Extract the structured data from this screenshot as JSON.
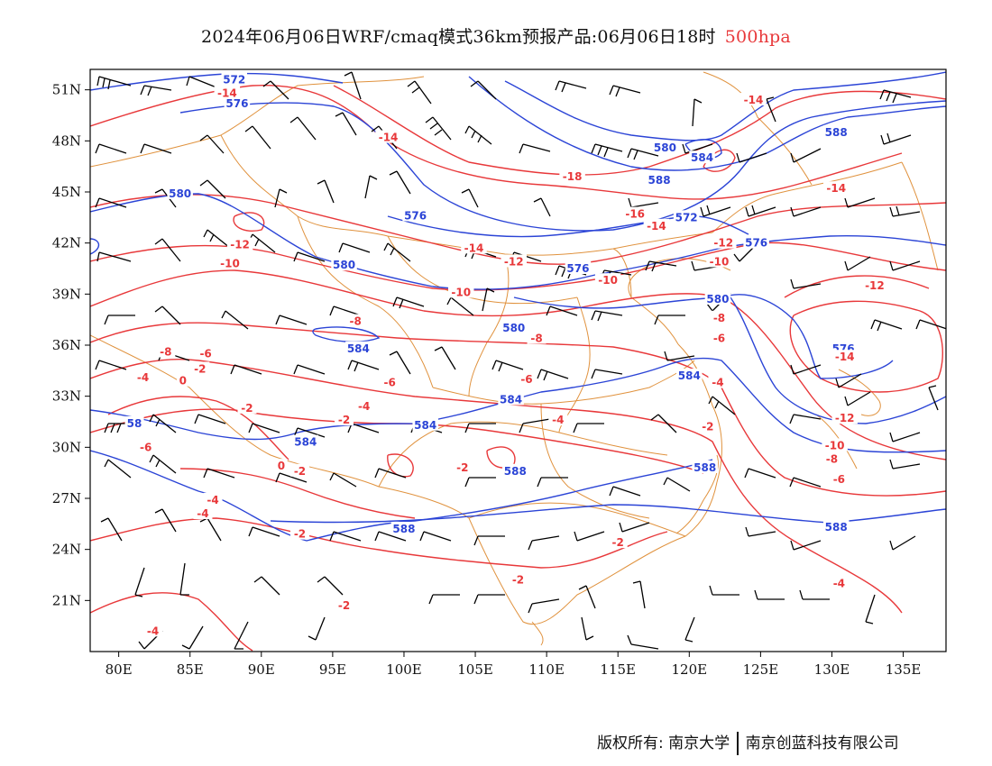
{
  "title": {
    "main": "2024年06月06日WRF/cmaq模式36km预报产品:06月06日18时",
    "level": "500hpa"
  },
  "map": {
    "lon_range": [
      78,
      138
    ],
    "lat_range": [
      18,
      52.2
    ],
    "lon_ticks": [
      {
        "value": 80,
        "label": "80E"
      },
      {
        "value": 85,
        "label": "85E"
      },
      {
        "value": 90,
        "label": "90E"
      },
      {
        "value": 95,
        "label": "95E"
      },
      {
        "value": 100,
        "label": "100E"
      },
      {
        "value": 105,
        "label": "105E"
      },
      {
        "value": 110,
        "label": "110E"
      },
      {
        "value": 115,
        "label": "115E"
      },
      {
        "value": 120,
        "label": "120E"
      },
      {
        "value": 125,
        "label": "125E"
      },
      {
        "value": 130,
        "label": "130E"
      },
      {
        "value": 135,
        "label": "135E"
      }
    ],
    "lat_ticks": [
      {
        "value": 51,
        "label": "51N"
      },
      {
        "value": 48,
        "label": "48N"
      },
      {
        "value": 45,
        "label": "45N"
      },
      {
        "value": 42,
        "label": "42N"
      },
      {
        "value": 39,
        "label": "39N"
      },
      {
        "value": 36,
        "label": "36N"
      },
      {
        "value": 33,
        "label": "33N"
      },
      {
        "value": 30,
        "label": "30N"
      },
      {
        "value": 27,
        "label": "27N"
      },
      {
        "value": 24,
        "label": "24N"
      },
      {
        "value": 21,
        "label": "21N"
      }
    ],
    "colors": {
      "height_contour": "#2b44d6",
      "temperature_contour": "#e8383a",
      "boundaries": "#e0923e",
      "wind_barbs": "#000000"
    },
    "height_labels": [
      {
        "text": "572",
        "lon": 88.1,
        "lat": 51.6
      },
      {
        "text": "576",
        "lon": 88.3,
        "lat": 50.2
      },
      {
        "text": "580",
        "lon": 84.3,
        "lat": 44.9
      },
      {
        "text": "576",
        "lon": 100.8,
        "lat": 43.6
      },
      {
        "text": "580",
        "lon": 95.8,
        "lat": 40.7
      },
      {
        "text": "584",
        "lon": 96.8,
        "lat": 35.8
      },
      {
        "text": "580",
        "lon": 107.7,
        "lat": 37.0
      },
      {
        "text": "576",
        "lon": 112.2,
        "lat": 40.5
      },
      {
        "text": "580",
        "lon": 118.3,
        "lat": 47.6
      },
      {
        "text": "584",
        "lon": 120.9,
        "lat": 47.0
      },
      {
        "text": "588",
        "lon": 130.3,
        "lat": 48.5
      },
      {
        "text": "588",
        "lon": 117.9,
        "lat": 45.7
      },
      {
        "text": "572",
        "lon": 119.8,
        "lat": 43.5
      },
      {
        "text": "576",
        "lon": 124.7,
        "lat": 42.0
      },
      {
        "text": "580",
        "lon": 122.0,
        "lat": 38.7
      },
      {
        "text": "576",
        "lon": 130.8,
        "lat": 35.8
      },
      {
        "text": "584",
        "lon": 120.0,
        "lat": 34.2
      },
      {
        "text": "584",
        "lon": 107.5,
        "lat": 32.8
      },
      {
        "text": "584",
        "lon": 101.5,
        "lat": 31.3
      },
      {
        "text": "584",
        "lon": 93.1,
        "lat": 30.3
      },
      {
        "text": "58",
        "lon": 81.1,
        "lat": 31.4
      },
      {
        "text": "588",
        "lon": 107.8,
        "lat": 28.6
      },
      {
        "text": "588",
        "lon": 121.1,
        "lat": 28.8
      },
      {
        "text": "588",
        "lon": 100.0,
        "lat": 25.2
      },
      {
        "text": "588",
        "lon": 130.3,
        "lat": 25.3
      },
      {
        "text": "5",
        "lon": 130.5,
        "lat": 28.2
      }
    ],
    "temperature_labels": [
      {
        "text": "-14",
        "lon": 87.6,
        "lat": 50.8
      },
      {
        "text": "-14",
        "lon": 98.9,
        "lat": 48.2
      },
      {
        "text": "-14",
        "lon": 124.5,
        "lat": 50.4
      },
      {
        "text": "-18",
        "lon": 111.8,
        "lat": 45.9
      },
      {
        "text": "-16",
        "lon": 116.2,
        "lat": 43.7
      },
      {
        "text": "-14",
        "lon": 117.7,
        "lat": 43.0
      },
      {
        "text": "-14",
        "lon": 130.3,
        "lat": 45.2
      },
      {
        "text": "-12",
        "lon": 88.5,
        "lat": 41.9
      },
      {
        "text": "-10",
        "lon": 87.8,
        "lat": 40.8
      },
      {
        "text": "-14",
        "lon": 104.9,
        "lat": 41.7
      },
      {
        "text": "-12",
        "lon": 107.7,
        "lat": 40.9
      },
      {
        "text": "-12",
        "lon": 122.4,
        "lat": 42.0
      },
      {
        "text": "-10",
        "lon": 122.1,
        "lat": 40.9
      },
      {
        "text": "-10",
        "lon": 114.3,
        "lat": 39.8
      },
      {
        "text": "-10",
        "lon": 104.0,
        "lat": 39.1
      },
      {
        "text": "-12",
        "lon": 133.0,
        "lat": 39.5
      },
      {
        "text": "-8",
        "lon": 96.6,
        "lat": 37.4
      },
      {
        "text": "-8",
        "lon": 122.1,
        "lat": 37.6
      },
      {
        "text": "-8",
        "lon": 109.3,
        "lat": 36.4
      },
      {
        "text": "-6",
        "lon": 122.1,
        "lat": 36.4
      },
      {
        "text": "-14",
        "lon": 130.9,
        "lat": 35.3
      },
      {
        "text": "-6",
        "lon": 86.1,
        "lat": 35.5
      },
      {
        "text": "-8",
        "lon": 83.3,
        "lat": 35.6
      },
      {
        "text": "-4",
        "lon": 81.7,
        "lat": 34.1
      },
      {
        "text": "-2",
        "lon": 85.7,
        "lat": 34.6
      },
      {
        "text": "0",
        "lon": 84.5,
        "lat": 33.9
      },
      {
        "text": "-6",
        "lon": 108.6,
        "lat": 34.0
      },
      {
        "text": "-6",
        "lon": 99.0,
        "lat": 33.8
      },
      {
        "text": "-4",
        "lon": 122.0,
        "lat": 33.8
      },
      {
        "text": "-4",
        "lon": 97.2,
        "lat": 32.4
      },
      {
        "text": "-2",
        "lon": 89.0,
        "lat": 32.3
      },
      {
        "text": "-2",
        "lon": 95.8,
        "lat": 31.6
      },
      {
        "text": "-4",
        "lon": 110.8,
        "lat": 31.6
      },
      {
        "text": "-2",
        "lon": 121.3,
        "lat": 31.2
      },
      {
        "text": "-12",
        "lon": 130.9,
        "lat": 31.7
      },
      {
        "text": "-6",
        "lon": 81.9,
        "lat": 30.0
      },
      {
        "text": "-10",
        "lon": 130.2,
        "lat": 30.1
      },
      {
        "text": "-8",
        "lon": 130.0,
        "lat": 29.3
      },
      {
        "text": "0",
        "lon": 91.4,
        "lat": 28.9
      },
      {
        "text": "-2",
        "lon": 92.7,
        "lat": 28.6
      },
      {
        "text": "-2",
        "lon": 104.1,
        "lat": 28.8
      },
      {
        "text": "-6",
        "lon": 130.5,
        "lat": 28.1
      },
      {
        "text": "-4",
        "lon": 86.6,
        "lat": 26.9
      },
      {
        "text": "-4",
        "lon": 85.9,
        "lat": 26.1
      },
      {
        "text": "-2",
        "lon": 92.7,
        "lat": 24.9
      },
      {
        "text": "-2",
        "lon": 115.0,
        "lat": 24.4
      },
      {
        "text": "-2",
        "lon": 108.0,
        "lat": 22.2
      },
      {
        "text": "-4",
        "lon": 130.5,
        "lat": 22.0
      },
      {
        "text": "-2",
        "lon": 95.8,
        "lat": 20.7
      },
      {
        "text": "-4",
        "lon": 82.4,
        "lat": 19.2
      }
    ]
  },
  "footer": {
    "copyright": "版权所有: 南京大学",
    "company": "南京创蓝科技有限公司"
  }
}
